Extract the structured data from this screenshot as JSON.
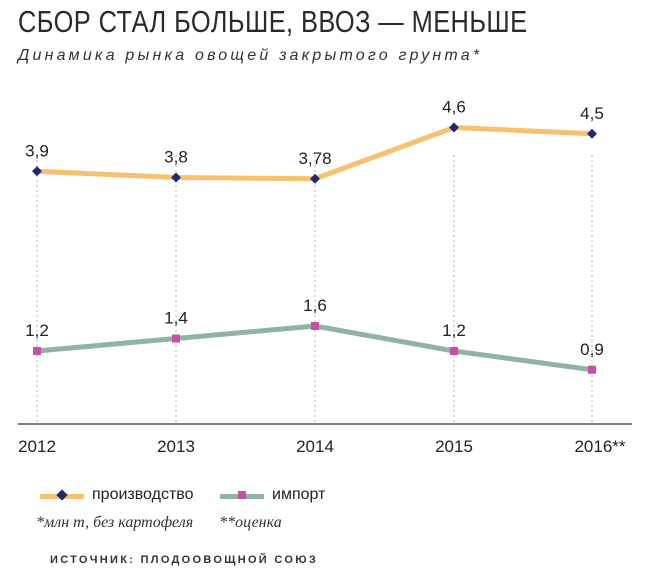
{
  "title": "СБОР СТАЛ БОЛЬШЕ, ВВОЗ — МЕНЬШЕ",
  "subtitle": "Динамика рынка овощей закрытого грунта*",
  "colors": {
    "production_line": "#f6c171",
    "import_line": "#8fb3a6",
    "production_marker": "#1f2a6b",
    "import_marker": "#c64fa6"
  },
  "chart_data": {
    "type": "line",
    "categories": [
      "2012",
      "2013",
      "2014",
      "2015",
      "2016**"
    ],
    "series": [
      {
        "name": "производство",
        "values": [
          3.9,
          3.8,
          3.78,
          4.6,
          4.5
        ],
        "labels": [
          "3,9",
          "3,8",
          "3,78",
          "4,6",
          "4,5"
        ]
      },
      {
        "name": "импорт",
        "values": [
          1.2,
          1.4,
          1.6,
          1.2,
          0.9
        ],
        "labels": [
          "1,2",
          "1,4",
          "1,6",
          "1,2",
          "0,9"
        ]
      }
    ],
    "title": "СБОР СТАЛ БОЛЬШЕ, ВВОЗ — МЕНЬШЕ",
    "ylim": [
      0,
      5
    ],
    "grid": "vertical-dashed"
  },
  "footnotes": {
    "unit_note": "*млн т, без картофеля",
    "estimate_note": "**оценка"
  },
  "source": "ИСТОЧНИК: ПЛОДООВОЩНОЙ СОЮЗ"
}
